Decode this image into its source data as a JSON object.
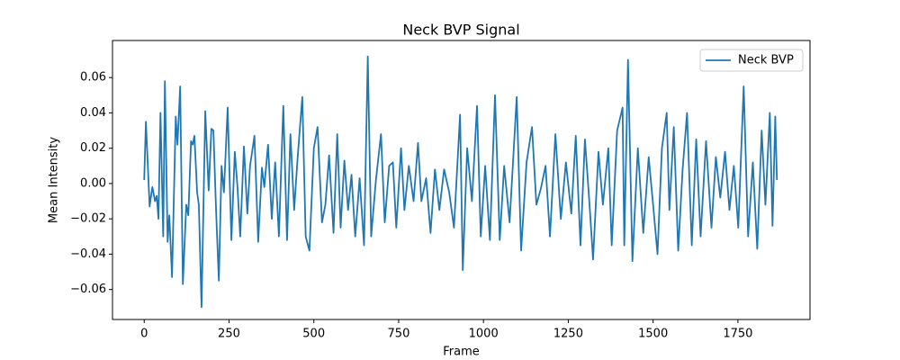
{
  "chart_data": {
    "type": "line",
    "title": "Neck BVP Signal",
    "x_label": "Frame",
    "y_label": "Mean Intensity",
    "x": [
      0,
      5,
      16,
      24,
      32,
      37,
      42,
      48,
      56,
      61,
      69,
      74,
      82,
      93,
      98,
      106,
      114,
      124,
      130,
      138,
      143,
      148,
      156,
      161,
      169,
      180,
      190,
      198,
      204,
      212,
      220,
      228,
      235,
      246,
      257,
      267,
      275,
      283,
      294,
      304,
      312,
      325,
      336,
      347,
      354,
      365,
      376,
      386,
      397,
      410,
      421,
      431,
      442,
      452,
      466,
      476,
      487,
      500,
      511,
      524,
      534,
      545,
      558,
      569,
      579,
      590,
      601,
      611,
      622,
      635,
      648,
      659,
      669,
      683,
      698,
      709,
      722,
      733,
      743,
      757,
      767,
      780,
      794,
      807,
      817,
      831,
      844,
      857,
      870,
      884,
      899,
      913,
      931,
      939,
      952,
      966,
      981,
      992,
      1005,
      1019,
      1034,
      1048,
      1061,
      1077,
      1098,
      1111,
      1127,
      1143,
      1156,
      1169,
      1183,
      1196,
      1212,
      1228,
      1243,
      1259,
      1272,
      1286,
      1299,
      1312,
      1323,
      1339,
      1352,
      1368,
      1378,
      1394,
      1410,
      1415,
      1426,
      1439,
      1455,
      1471,
      1487,
      1500,
      1513,
      1526,
      1540,
      1548,
      1561,
      1574,
      1587,
      1600,
      1614,
      1627,
      1640,
      1656,
      1672,
      1685,
      1698,
      1712,
      1725,
      1738,
      1751,
      1767,
      1780,
      1794,
      1807,
      1820,
      1831,
      1844,
      1852,
      1860,
      1865
    ],
    "series": [
      {
        "name": "Neck BVP",
        "color": "#1f77b4",
        "values": [
          0.002,
          0.035,
          -0.013,
          -0.002,
          -0.01,
          -0.007,
          -0.02,
          0.04,
          -0.03,
          0.058,
          -0.033,
          -0.018,
          -0.053,
          0.038,
          0.022,
          0.055,
          -0.057,
          -0.012,
          -0.018,
          0.024,
          0.022,
          0.027,
          -0.005,
          -0.012,
          -0.07,
          0.041,
          -0.004,
          0.031,
          0.03,
          -0.016,
          -0.055,
          0.01,
          -0.005,
          0.043,
          -0.032,
          0.018,
          -0.002,
          -0.03,
          0.021,
          -0.017,
          0.01,
          0.027,
          -0.033,
          0.009,
          -0.002,
          0.022,
          -0.02,
          0.012,
          -0.03,
          0.044,
          -0.032,
          0.028,
          -0.015,
          0.014,
          0.049,
          -0.03,
          -0.038,
          0.02,
          0.032,
          -0.022,
          -0.012,
          0.016,
          -0.028,
          0.028,
          -0.025,
          0.013,
          -0.015,
          0.005,
          -0.03,
          0.003,
          -0.035,
          0.072,
          -0.03,
          0.002,
          0.028,
          -0.022,
          0.01,
          0.012,
          -0.025,
          0.02,
          -0.015,
          0.01,
          -0.01,
          0.023,
          -0.01,
          0.003,
          -0.028,
          0.008,
          -0.015,
          0.008,
          -0.005,
          -0.025,
          0.039,
          -0.049,
          0.02,
          -0.01,
          0.044,
          -0.03,
          0.01,
          -0.032,
          0.05,
          -0.032,
          0.01,
          -0.022,
          0.049,
          -0.038,
          0.012,
          0.032,
          -0.012,
          -0.003,
          0.01,
          -0.03,
          0.028,
          -0.02,
          0.012,
          -0.017,
          0.027,
          -0.035,
          0.025,
          -0.01,
          -0.043,
          0.018,
          -0.012,
          0.02,
          -0.035,
          0.03,
          0.043,
          -0.035,
          0.07,
          -0.044,
          0.02,
          -0.028,
          0.015,
          -0.012,
          -0.04,
          0.02,
          0.04,
          -0.015,
          0.032,
          -0.038,
          0.008,
          0.04,
          -0.035,
          0.025,
          -0.03,
          0.024,
          -0.025,
          0.015,
          -0.008,
          0.018,
          -0.015,
          0.01,
          -0.025,
          0.055,
          -0.03,
          0.012,
          -0.037,
          0.03,
          -0.012,
          0.04,
          -0.024,
          0.038,
          0.002
        ]
      }
    ],
    "xlim": [
      -93.45,
      1962.45
    ],
    "ylim": [
      -0.077,
      0.081
    ],
    "xticks": [
      0,
      250,
      500,
      750,
      1000,
      1250,
      1500,
      1750
    ],
    "yticks": [
      {
        "value": -0.06,
        "label": "−0.06"
      },
      {
        "value": -0.04,
        "label": "−0.04"
      },
      {
        "value": -0.02,
        "label": "−0.02"
      },
      {
        "value": 0,
        "label": "0.00"
      },
      {
        "value": 0.02,
        "label": "0.02"
      },
      {
        "value": 0.04,
        "label": "0.04"
      },
      {
        "value": 0.06,
        "label": "0.06"
      }
    ],
    "legend": "upper right"
  }
}
